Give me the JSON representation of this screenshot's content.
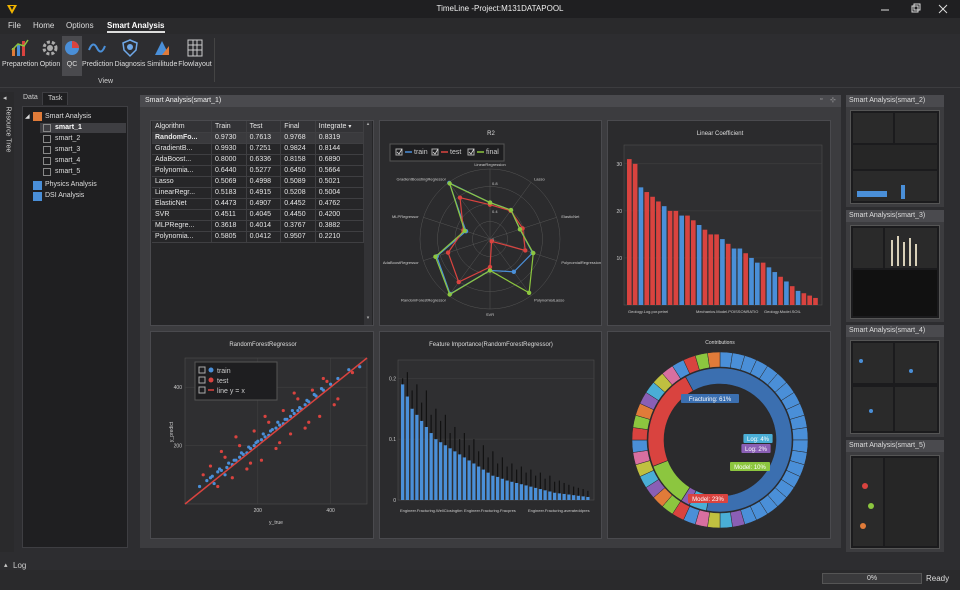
{
  "window": {
    "title": "TimeLine -Project:M131DATAPOOL"
  },
  "menu": [
    "File",
    "Home",
    "Options",
    "Smart Analysis"
  ],
  "ribbon": {
    "buttons": [
      {
        "label": "Preparetion",
        "icon": "bar-chart-icon"
      },
      {
        "label": "Option",
        "icon": "gear-icon"
      },
      {
        "label": "QC",
        "icon": "pie-icon"
      },
      {
        "label": "Prediction",
        "icon": "wave-icon"
      },
      {
        "label": "Diagnosis",
        "icon": "shield-icon"
      },
      {
        "label": "Similitude",
        "icon": "similitude-icon"
      },
      {
        "label": "Flowlayout",
        "icon": "grid-icon"
      }
    ],
    "group_label": "View"
  },
  "left_strip": {
    "label": "Resource Tree"
  },
  "side": {
    "tabs": [
      "Data",
      "Task"
    ],
    "tree": {
      "root": "Smart Analysis",
      "children": [
        "smart_1",
        "smart_2",
        "smart_3",
        "smart_4",
        "smart_5"
      ],
      "others": [
        "Physics Analysis",
        "DSI Analysis"
      ]
    }
  },
  "main": {
    "title": "Smart Analysis(smart_1)",
    "table": {
      "headers": [
        "Algorithm",
        "Train",
        "Test",
        "Final",
        "Integrate"
      ],
      "rows": [
        [
          "RandomFo...",
          "0.9730",
          "0.7613",
          "0.9768",
          "0.8319"
        ],
        [
          "GradientB...",
          "0.9930",
          "0.7251",
          "0.9824",
          "0.8144"
        ],
        [
          "AdaBoost...",
          "0.8000",
          "0.6336",
          "0.8158",
          "0.6890"
        ],
        [
          "Polynomia...",
          "0.6440",
          "0.5277",
          "0.6450",
          "0.5664"
        ],
        [
          "Lasso",
          "0.5069",
          "0.4998",
          "0.5089",
          "0.5021"
        ],
        [
          "LinearRegr...",
          "0.5183",
          "0.4915",
          "0.5208",
          "0.5004"
        ],
        [
          "ElasticNet",
          "0.4473",
          "0.4907",
          "0.4452",
          "0.4762"
        ],
        [
          "SVR",
          "0.4511",
          "0.4045",
          "0.4450",
          "0.4200"
        ],
        [
          "MLPRegre...",
          "0.3618",
          "0.4014",
          "0.3767",
          "0.3882"
        ],
        [
          "Polynomia...",
          "0.5805",
          "0.0412",
          "0.9507",
          "0.2210"
        ]
      ]
    }
  },
  "right": {
    "panels": [
      "Smart Analysis(smart_2)",
      "Smart Analysis(smart_3)",
      "Smart Analysis(smart_4)",
      "Smart Analysis(smart_5)"
    ]
  },
  "bottom": {
    "log": "Log",
    "progress": "0%",
    "status": "Ready"
  },
  "colors": {
    "train": "#4a8fd8",
    "test": "#d9433f",
    "final": "#8cc63f",
    "accent_orange": "#e07b39"
  },
  "chart_data": [
    {
      "type": "radar",
      "title": "R2",
      "legend": [
        "train",
        "test",
        "final"
      ],
      "axes": [
        "LinearRegression",
        "Lasso",
        "ElasticNet",
        "PolynomialRegression",
        "PolynomialLasso",
        "SVR",
        "RandomForestRegressor",
        "AdaBoostRegressor",
        "MLPRegressor",
        "GradientBoostingRegressor"
      ],
      "ticks": [
        "0.8",
        "0.4",
        "0"
      ],
      "series": [
        {
          "name": "train",
          "values": [
            0.52,
            0.51,
            0.45,
            0.64,
            0.58,
            0.45,
            0.97,
            0.8,
            0.36,
            0.99
          ]
        },
        {
          "name": "test",
          "values": [
            0.49,
            0.5,
            0.49,
            0.53,
            0.04,
            0.4,
            0.76,
            0.63,
            0.4,
            0.73
          ]
        },
        {
          "name": "final",
          "values": [
            0.52,
            0.51,
            0.45,
            0.65,
            0.95,
            0.45,
            0.98,
            0.82,
            0.38,
            0.98
          ]
        }
      ]
    },
    {
      "type": "bar",
      "title": "Linear Coefficient",
      "yticks": [
        "30",
        "20",
        "10"
      ],
      "ylim": [
        0,
        34
      ],
      "xtick_labels": [
        "Geology.Log.por.petrel",
        "Mechanics.Model.POISSONRATIO",
        "Geology.Model.SOIL"
      ],
      "values": [
        31,
        30,
        25,
        24,
        23,
        22,
        21,
        20,
        20,
        19,
        19,
        18,
        17,
        16,
        15,
        15,
        14,
        13,
        12,
        12,
        11,
        10,
        9,
        9,
        8,
        7,
        6,
        5,
        4,
        3,
        2.5,
        2,
        1.5
      ],
      "bar_colors": [
        "red",
        "red",
        "blue",
        "red",
        "red",
        "red",
        "blue",
        "red",
        "red",
        "blue",
        "red",
        "red",
        "blue",
        "red",
        "red",
        "red",
        "blue",
        "red",
        "blue",
        "blue",
        "red",
        "blue",
        "blue",
        "red",
        "blue",
        "blue",
        "red",
        "blue",
        "red",
        "blue",
        "red",
        "red",
        "red"
      ]
    },
    {
      "type": "scatter",
      "title": "RandomForestRegressor",
      "xlabel": "y_true",
      "ylabel": "y_predict",
      "xticks": [
        "200",
        "400"
      ],
      "yticks": [
        "400",
        "200"
      ],
      "xlim": [
        0,
        500
      ],
      "ylim": [
        0,
        500
      ],
      "legend": [
        "train",
        "test",
        "line y = x"
      ],
      "series": [
        {
          "name": "train",
          "points": [
            [
              40,
              60
            ],
            [
              60,
              80
            ],
            [
              75,
              95
            ],
            [
              80,
              70
            ],
            [
              90,
              110
            ],
            [
              100,
              115
            ],
            [
              110,
              100
            ],
            [
              120,
              140
            ],
            [
              130,
              135
            ],
            [
              140,
              150
            ],
            [
              150,
              160
            ],
            [
              160,
              170
            ],
            [
              170,
              175
            ],
            [
              180,
              190
            ],
            [
              190,
              200
            ],
            [
              200,
              215
            ],
            [
              210,
              220
            ],
            [
              220,
              230
            ],
            [
              230,
              235
            ],
            [
              240,
              255
            ],
            [
              250,
              260
            ],
            [
              260,
              270
            ],
            [
              270,
              275
            ],
            [
              280,
              290
            ],
            [
              290,
              300
            ],
            [
              300,
              310
            ],
            [
              310,
              320
            ],
            [
              320,
              325
            ],
            [
              330,
              340
            ],
            [
              340,
              350
            ],
            [
              360,
              370
            ],
            [
              380,
              390
            ],
            [
              400,
              410
            ],
            [
              420,
              430
            ],
            [
              70,
              90
            ],
            [
              95,
              120
            ],
            [
              115,
              125
            ],
            [
              135,
              150
            ],
            [
              155,
              175
            ],
            [
              175,
              195
            ],
            [
              195,
              210
            ],
            [
              215,
              240
            ],
            [
              235,
              250
            ],
            [
              255,
              280
            ],
            [
              275,
              290
            ],
            [
              295,
              320
            ],
            [
              315,
              330
            ],
            [
              335,
              355
            ],
            [
              355,
              375
            ],
            [
              375,
              395
            ],
            [
              450,
              460
            ],
            [
              480,
              470
            ]
          ]
        },
        {
          "name": "test",
          "points": [
            [
              50,
              100
            ],
            [
              70,
              130
            ],
            [
              90,
              60
            ],
            [
              110,
              160
            ],
            [
              130,
              90
            ],
            [
              150,
              200
            ],
            [
              170,
              120
            ],
            [
              190,
              250
            ],
            [
              210,
              150
            ],
            [
              230,
              280
            ],
            [
              250,
              190
            ],
            [
              270,
              320
            ],
            [
              290,
              240
            ],
            [
              310,
              360
            ],
            [
              330,
              260
            ],
            [
              350,
              390
            ],
            [
              370,
              300
            ],
            [
              390,
              420
            ],
            [
              410,
              340
            ],
            [
              100,
              180
            ],
            [
              140,
              230
            ],
            [
              180,
              140
            ],
            [
              220,
              300
            ],
            [
              260,
              210
            ],
            [
              300,
              380
            ],
            [
              340,
              280
            ],
            [
              380,
              430
            ],
            [
              420,
              360
            ],
            [
              460,
              450
            ]
          ]
        }
      ]
    },
    {
      "type": "bar",
      "title": "Feature Importance(RandomForestRegressor)",
      "yticks": [
        "0.2",
        "0.1",
        "0"
      ],
      "ylim": [
        0,
        0.23
      ],
      "xtick_labels": [
        "Engineer.Fracturing.WellClosingtim",
        "Engineer.Fracturing.Fracpres",
        "Engineer.Fracturing.averateddpres"
      ],
      "values": [
        0.19,
        0.17,
        0.15,
        0.14,
        0.13,
        0.12,
        0.11,
        0.1,
        0.095,
        0.09,
        0.085,
        0.08,
        0.075,
        0.07,
        0.065,
        0.06,
        0.055,
        0.05,
        0.045,
        0.04,
        0.038,
        0.035,
        0.032,
        0.03,
        0.028,
        0.026,
        0.024,
        0.022,
        0.02,
        0.018,
        0.016,
        0.014,
        0.012,
        0.011,
        0.01,
        0.009,
        0.008,
        0.007,
        0.006,
        0.005
      ],
      "error_tops": [
        0.2,
        0.21,
        0.18,
        0.19,
        0.16,
        0.18,
        0.14,
        0.15,
        0.13,
        0.14,
        0.11,
        0.12,
        0.1,
        0.11,
        0.09,
        0.1,
        0.08,
        0.09,
        0.07,
        0.08,
        0.06,
        0.07,
        0.055,
        0.06,
        0.05,
        0.055,
        0.045,
        0.05,
        0.04,
        0.045,
        0.035,
        0.04,
        0.03,
        0.032,
        0.028,
        0.025,
        0.022,
        0.02,
        0.018,
        0.015
      ]
    },
    {
      "type": "pie",
      "title": "Contributions",
      "labels": [
        "Fracturing: 61%",
        "Log: 4%",
        "Log: 2%",
        "Model: 10%",
        "Model: 23%"
      ],
      "values": [
        61,
        4,
        2,
        10,
        23
      ]
    }
  ]
}
